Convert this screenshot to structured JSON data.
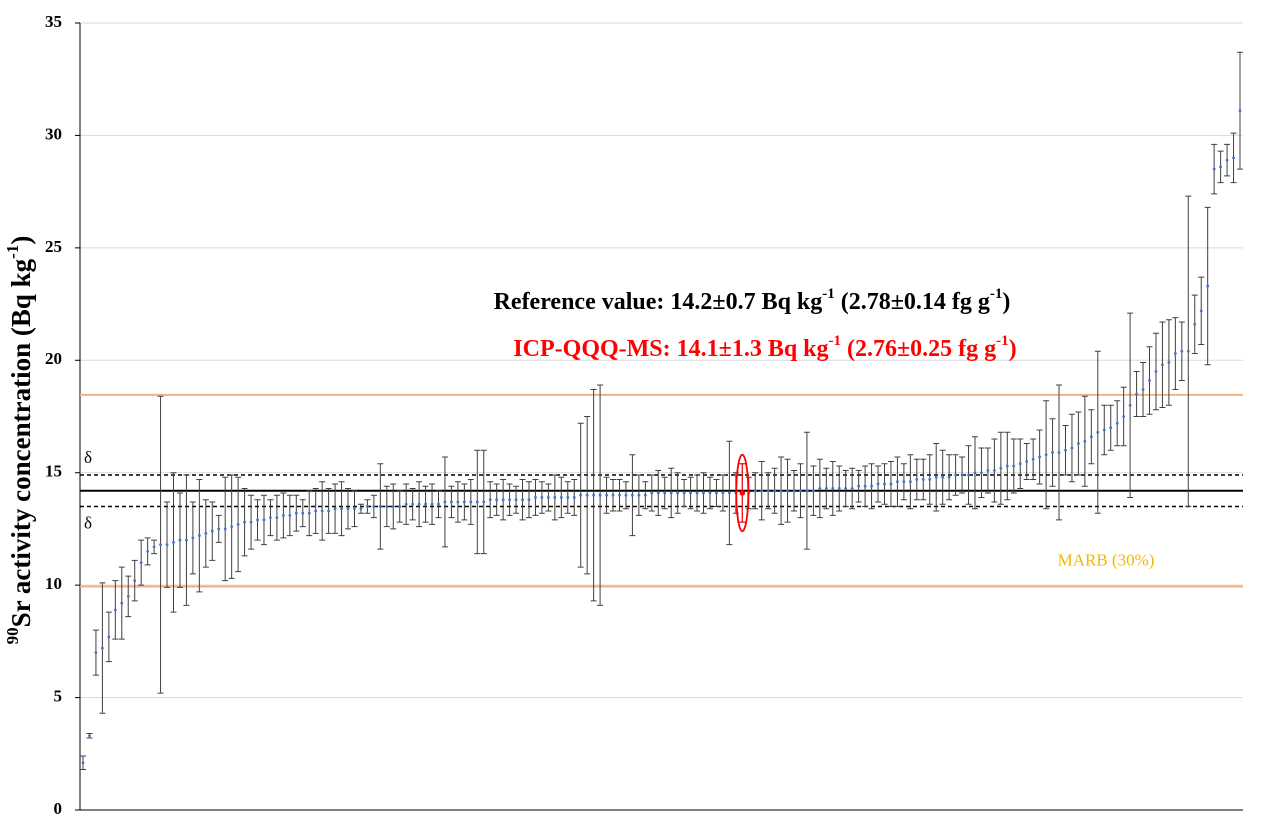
{
  "chart_data": {
    "type": "errorbar-scatter",
    "y_label": [
      {
        "t": "90",
        "sup": true
      },
      {
        "t": "Sr activity concentration (Bq kg"
      },
      {
        "t": "-1",
        "sup": true
      },
      {
        "t": ")"
      }
    ],
    "ylim": [
      0,
      35
    ],
    "yticks": [
      0,
      5,
      10,
      15,
      20,
      25,
      30,
      35
    ],
    "grid": true,
    "series": [
      {
        "color": "#4472c4",
        "errorcolor": "#404040",
        "values": [
          2.1,
          3.3,
          7.0,
          7.2,
          7.7,
          8.9,
          9.2,
          9.5,
          10.2,
          11.0,
          11.5,
          11.7,
          11.8,
          11.8,
          11.9,
          12.0,
          12.0,
          12.1,
          12.2,
          12.3,
          12.4,
          12.5,
          12.5,
          12.6,
          12.7,
          12.8,
          12.8,
          12.9,
          12.9,
          13.0,
          13.0,
          13.1,
          13.1,
          13.2,
          13.2,
          13.2,
          13.3,
          13.3,
          13.3,
          13.4,
          13.4,
          13.4,
          13.4,
          13.4,
          13.5,
          13.5,
          13.5,
          13.5,
          13.5,
          13.5,
          13.6,
          13.6,
          13.6,
          13.6,
          13.6,
          13.6,
          13.7,
          13.7,
          13.7,
          13.7,
          13.7,
          13.7,
          13.7,
          13.8,
          13.8,
          13.8,
          13.8,
          13.8,
          13.8,
          13.8,
          13.9,
          13.9,
          13.9,
          13.9,
          13.9,
          13.9,
          13.9,
          14.0,
          14.0,
          14.0,
          14.0,
          14.0,
          14.0,
          14.0,
          14.0,
          14.0,
          14.0,
          14.0,
          14.1,
          14.1,
          14.1,
          14.1,
          14.1,
          14.1,
          14.1,
          14.1,
          14.1,
          14.1,
          14.1,
          14.1,
          14.1,
          14.1,
          14.1,
          14.1,
          14.2,
          14.2,
          14.2,
          14.2,
          14.2,
          14.2,
          14.2,
          14.2,
          14.2,
          14.2,
          14.3,
          14.3,
          14.3,
          14.3,
          14.3,
          14.3,
          14.4,
          14.4,
          14.4,
          14.5,
          14.5,
          14.5,
          14.6,
          14.6,
          14.6,
          14.7,
          14.7,
          14.7,
          14.8,
          14.8,
          14.8,
          14.9,
          14.9,
          14.9,
          15.0,
          15.0,
          15.1,
          15.1,
          15.2,
          15.3,
          15.3,
          15.4,
          15.5,
          15.6,
          15.7,
          15.8,
          15.9,
          15.9,
          16.0,
          16.1,
          16.3,
          16.4,
          16.6,
          16.8,
          16.9,
          17.0,
          17.2,
          17.5,
          18.0,
          18.5,
          18.7,
          19.1,
          19.5,
          19.8,
          19.9,
          20.3,
          20.4,
          20.4,
          21.6,
          22.2,
          23.3,
          28.5,
          28.6,
          28.9,
          29.0,
          31.1
        ],
        "errors": [
          0.3,
          0.1,
          1.0,
          2.9,
          1.1,
          1.3,
          1.6,
          0.9,
          0.9,
          1.0,
          0.6,
          0.3,
          6.6,
          1.9,
          3.1,
          2.1,
          2.9,
          1.6,
          2.5,
          1.5,
          1.3,
          0.6,
          2.3,
          2.3,
          2.1,
          1.5,
          1.2,
          0.9,
          1.1,
          0.8,
          1.0,
          1.0,
          0.9,
          0.8,
          0.6,
          1.0,
          1.0,
          1.3,
          1.0,
          1.1,
          1.2,
          0.9,
          0.8,
          0.2,
          0.3,
          0.5,
          1.9,
          0.9,
          1.0,
          0.7,
          0.9,
          0.7,
          1.0,
          0.8,
          0.9,
          0.6,
          2.0,
          0.7,
          0.9,
          0.8,
          1.0,
          2.3,
          2.3,
          0.8,
          0.7,
          0.9,
          0.7,
          0.6,
          0.9,
          0.8,
          0.8,
          0.7,
          0.6,
          1.0,
          0.9,
          0.7,
          0.8,
          3.2,
          3.5,
          4.7,
          4.9,
          0.8,
          0.7,
          0.7,
          0.6,
          1.8,
          0.9,
          0.6,
          0.8,
          1.0,
          0.7,
          1.1,
          0.9,
          0.6,
          0.7,
          0.8,
          0.9,
          0.7,
          0.6,
          0.8,
          2.3,
          0.9,
          1.3,
          0.7,
          0.8,
          1.3,
          0.8,
          1.0,
          1.5,
          1.4,
          0.9,
          1.2,
          2.6,
          1.1,
          1.3,
          0.9,
          1.2,
          1.0,
          0.8,
          0.9,
          0.7,
          0.9,
          1.0,
          0.8,
          0.9,
          1.0,
          1.1,
          0.8,
          1.2,
          0.9,
          0.9,
          1.1,
          1.5,
          1.2,
          1.0,
          0.9,
          0.8,
          1.3,
          1.6,
          1.1,
          1.0,
          1.4,
          1.6,
          1.5,
          1.2,
          1.1,
          0.8,
          0.9,
          1.2,
          2.4,
          1.5,
          3.0,
          1.1,
          1.5,
          1.4,
          2.0,
          1.2,
          3.6,
          1.1,
          1.0,
          1.0,
          1.3,
          4.1,
          1.0,
          1.2,
          1.5,
          1.7,
          1.9,
          1.9,
          1.6,
          1.3,
          6.9,
          1.3,
          1.5,
          3.5,
          1.1,
          0.7,
          0.7,
          1.1,
          2.6
        ]
      },
      {
        "color": "#ff0000",
        "errorcolor": "#ff0000",
        "x": [
          102
        ],
        "values": [
          14.1
        ],
        "errors": [
          1.3
        ]
      }
    ],
    "reference_lines": [
      {
        "value": 14.2,
        "color": "#000000",
        "dashed": false
      },
      {
        "value": 14.9,
        "color": "#000000",
        "dashed": true,
        "label": "δ"
      },
      {
        "value": 13.5,
        "color": "#000000",
        "dashed": true,
        "label": "δ"
      },
      {
        "value": 18.46,
        "color": "#f4b183",
        "dashed": false
      },
      {
        "value": 9.94,
        "color": "#f4b183",
        "dashed": false,
        "label": "MARB (30%)",
        "label_color": "#f2b800"
      }
    ],
    "annotations": [
      {
        "color": "#000000",
        "parts": [
          {
            "t": "Reference value: 14.2±0.7 Bq kg"
          },
          {
            "t": "-1",
            "sup": true
          },
          {
            "t": " (2.78±0.14 fg g"
          },
          {
            "t": "-1",
            "sup": true
          },
          {
            "t": ")"
          }
        ]
      },
      {
        "color": "#ff0000",
        "parts": [
          {
            "t": "ICP-QQQ-MS: 14.1±1.3 Bq kg"
          },
          {
            "t": "-1",
            "sup": true
          },
          {
            "t": " (2.76±0.25 fg g"
          },
          {
            "t": "-1",
            "sup": true
          },
          {
            "t": ")"
          }
        ]
      }
    ]
  }
}
